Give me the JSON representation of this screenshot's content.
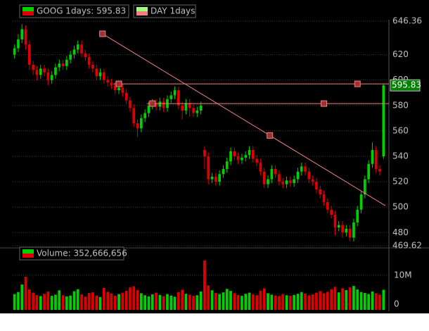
{
  "chart_data": {
    "type": "candlestick",
    "series_names": [
      "GOOG 1days: 595.83",
      "DAY 1days"
    ],
    "last_price": {
      "value": 595.83,
      "label": "595.83"
    },
    "ylim": [
      469.62,
      646.36
    ],
    "yticks": [
      {
        "value": 469.62,
        "label": "469.62"
      },
      480,
      500,
      520,
      540,
      560,
      580,
      600,
      620,
      {
        "value": 646.36,
        "label": "646.36"
      }
    ],
    "up_color": "#00d000",
    "down_color": "#e00000",
    "open": [
      620,
      625,
      632,
      640,
      628,
      612,
      608,
      604,
      609,
      606,
      600,
      604,
      610,
      613,
      611,
      616,
      620,
      624,
      628,
      621,
      618,
      612,
      609,
      603,
      606,
      600,
      598,
      596,
      592,
      594,
      590,
      584,
      578,
      566,
      562,
      570,
      574,
      580,
      582,
      579,
      583,
      578,
      585,
      588,
      592,
      580,
      576,
      582,
      578,
      574,
      576,
      545,
      540,
      522,
      524,
      520,
      526,
      530,
      536,
      544,
      540,
      537,
      539,
      541,
      545,
      538,
      535,
      528,
      518,
      522,
      530,
      526,
      520,
      518,
      521,
      519,
      522,
      528,
      532,
      528,
      522,
      520,
      514,
      510,
      504,
      498,
      494,
      484,
      486,
      480,
      483,
      476,
      488,
      498,
      510,
      522,
      534,
      545,
      530,
      540
    ],
    "high": [
      628,
      636,
      644,
      643,
      631,
      615,
      611,
      612,
      612,
      609,
      607,
      613,
      616,
      616,
      619,
      623,
      627,
      631,
      631,
      624,
      621,
      615,
      612,
      609,
      609,
      603,
      601,
      599,
      597,
      597,
      593,
      587,
      581,
      569,
      573,
      577,
      583,
      585,
      585,
      586,
      586,
      588,
      591,
      595,
      595,
      583,
      585,
      585,
      581,
      579,
      583,
      548,
      543,
      527,
      527,
      529,
      533,
      539,
      547,
      547,
      543,
      542,
      544,
      548,
      548,
      541,
      538,
      531,
      525,
      533,
      533,
      529,
      523,
      524,
      524,
      525,
      531,
      535,
      535,
      531,
      525,
      523,
      517,
      513,
      507,
      501,
      497,
      489,
      489,
      486,
      486,
      491,
      501,
      513,
      525,
      537,
      551,
      548,
      533,
      597
    ],
    "low": [
      617,
      622,
      629,
      624,
      608,
      604,
      600,
      601,
      603,
      596,
      597,
      601,
      607,
      608,
      608,
      613,
      617,
      621,
      618,
      615,
      609,
      606,
      600,
      600,
      597,
      595,
      593,
      589,
      589,
      587,
      581,
      575,
      563,
      555,
      559,
      567,
      571,
      577,
      576,
      576,
      575,
      575,
      582,
      585,
      577,
      569,
      573,
      571,
      571,
      571,
      573,
      530,
      518,
      519,
      517,
      517,
      523,
      527,
      533,
      537,
      534,
      534,
      536,
      538,
      535,
      532,
      525,
      515,
      515,
      519,
      523,
      517,
      515,
      515,
      516,
      516,
      519,
      525,
      525,
      519,
      517,
      511,
      507,
      501,
      495,
      491,
      478,
      481,
      476,
      477,
      473,
      473,
      485,
      495,
      507,
      519,
      531,
      527,
      525,
      538
    ],
    "close": [
      625,
      632,
      640,
      628,
      612,
      608,
      604,
      609,
      606,
      600,
      604,
      610,
      613,
      611,
      616,
      620,
      624,
      628,
      621,
      618,
      612,
      609,
      603,
      606,
      600,
      598,
      596,
      592,
      594,
      590,
      584,
      578,
      566,
      562,
      570,
      574,
      580,
      582,
      579,
      583,
      578,
      585,
      588,
      592,
      580,
      576,
      582,
      578,
      574,
      576,
      580,
      540,
      522,
      524,
      520,
      526,
      530,
      536,
      544,
      540,
      537,
      539,
      541,
      545,
      538,
      535,
      528,
      518,
      522,
      530,
      526,
      520,
      518,
      521,
      519,
      522,
      528,
      532,
      528,
      522,
      520,
      514,
      510,
      504,
      498,
      494,
      484,
      486,
      480,
      483,
      476,
      488,
      498,
      510,
      522,
      534,
      545,
      530,
      528,
      595.83
    ],
    "drawings": {
      "trendline": [
        {
          "index": 23.6,
          "price": 636.4
        },
        {
          "index": 68.5,
          "price": 556.4
        }
      ],
      "hlines": [
        {
          "price": 597,
          "from": 28,
          "to": 92
        },
        {
          "price": 581.5,
          "from": 37,
          "to": 83
        }
      ],
      "color": "#f08080"
    },
    "volume": {
      "name": "Volume: 352,666,656",
      "ylim": [
        0,
        14.6
      ],
      "yticks": [
        0,
        {
          "value": 10,
          "label": "10M"
        }
      ],
      "values": [
        3.5,
        4.2,
        6.8,
        9.5,
        5.1,
        4.0,
        3.2,
        2.8,
        3.6,
        4.4,
        2.9,
        3.3,
        4.8,
        3.1,
        2.7,
        3.0,
        4.5,
        5.2,
        3.4,
        2.6,
        3.9,
        4.1,
        3.0,
        2.5,
        5.6,
        4.3,
        3.7,
        2.9,
        3.5,
        4.0,
        4.6,
        5.8,
        6.2,
        4.9,
        3.8,
        3.1,
        2.7,
        3.4,
        4.0,
        3.2,
        2.8,
        3.5,
        3.0,
        2.6,
        4.2,
        5.0,
        3.6,
        3.3,
        2.9,
        3.1,
        4.4,
        16.0,
        6.5,
        4.8,
        3.9,
        3.5,
        4.1,
        5.3,
        4.6,
        3.8,
        3.2,
        2.9,
        3.6,
        4.0,
        3.4,
        3.1,
        4.7,
        5.5,
        3.8,
        3.3,
        3.0,
        2.8,
        3.5,
        3.1,
        2.9,
        3.2,
        3.6,
        4.2,
        3.7,
        3.1,
        3.4,
        4.0,
        4.5,
        3.8,
        4.3,
        5.2,
        6.0,
        4.1,
        5.5,
        4.9,
        5.8,
        6.3,
        5.1,
        4.2,
        3.9,
        3.5,
        4.4,
        3.8,
        3.3,
        5.0
      ]
    }
  }
}
